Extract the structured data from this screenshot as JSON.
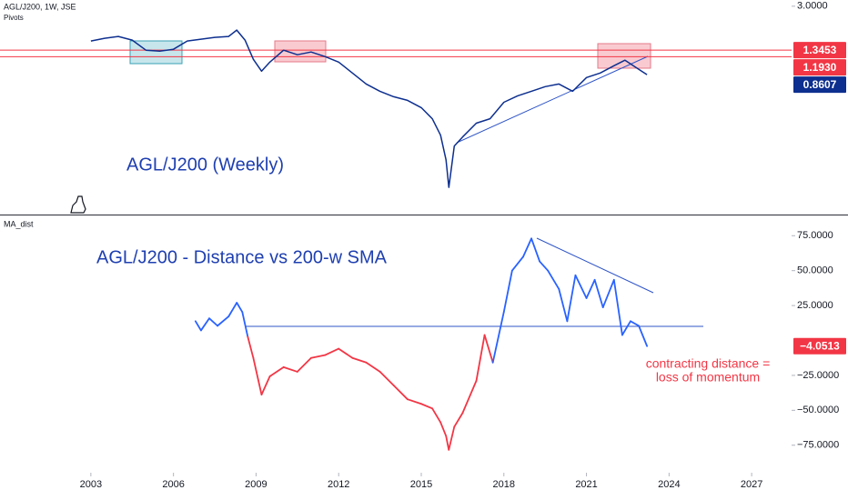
{
  "chart_data": [
    {
      "type": "line",
      "title": "AGL/J200, 1W, JSE",
      "subtitle": "Pivots",
      "annotation": "AGL/J200 (Weekly)",
      "log": true,
      "color": "#0d2f8f",
      "xlim": [
        1999.7,
        2028.45
      ],
      "ylim": [
        0.067,
        3.36
      ],
      "yticks": [
        {
          "value": 3,
          "label": "3.0000"
        }
      ],
      "levels": [
        1.3453,
        {
          "value": 1.193,
          "label": "1.1930"
        }
      ],
      "level_color": "#f23645",
      "x": [
        2003,
        2003.5,
        2004,
        2004.5,
        2005,
        2005.5,
        2006,
        2006.5,
        2007,
        2007.5,
        2008,
        2008.3,
        2008.6,
        2008.9,
        2009.2,
        2009.5,
        2010,
        2010.5,
        2011,
        2011.5,
        2012,
        2012.5,
        2013,
        2013.5,
        2014,
        2014.5,
        2015,
        2015.4,
        2015.7,
        2015.9,
        2016,
        2016.2,
        2016.5,
        2017,
        2017.5,
        2018,
        2018.5,
        2019,
        2019.5,
        2020,
        2020.5,
        2021,
        2021.5,
        2022,
        2022.4,
        2022.7,
        2023,
        2023.2
      ],
      "values": [
        1.589,
        1.671,
        1.727,
        1.616,
        1.345,
        1.323,
        1.368,
        1.589,
        1.643,
        1.699,
        1.727,
        1.941,
        1.616,
        1.139,
        0.917,
        1.083,
        1.345,
        1.238,
        1.301,
        1.197,
        1.083,
        0.887,
        0.726,
        0.635,
        0.575,
        0.538,
        0.471,
        0.385,
        0.285,
        0.182,
        0.11,
        0.234,
        0.276,
        0.355,
        0.385,
        0.52,
        0.585,
        0.635,
        0.691,
        0.726,
        0.635,
        0.816,
        0.887,
        1.013,
        1.12,
        1.013,
        0.917,
        0.8607
      ]
    },
    {
      "type": "line",
      "title": "MA_dist",
      "annotation": "AGL/J200 - Distance vs 200-w SMA",
      "note": [
        "contracting distance =",
        "loss of momentum"
      ],
      "up_color": "#2962ff",
      "down_color": "#f23645",
      "xlim": [
        1999.7,
        2028.45
      ],
      "ylim": [
        -94.7,
        89.5
      ],
      "xticks": [
        2003,
        2006,
        2009,
        2012,
        2015,
        2018,
        2021,
        2024,
        2027
      ],
      "yticks": [
        {
          "value": 75,
          "label": "75.0000"
        },
        {
          "value": 50,
          "label": "50.0000"
        },
        {
          "value": 25,
          "label": "25.0000"
        },
        {
          "value": -25,
          "label": "−25.0000"
        },
        {
          "value": -50,
          "label": "−50.0000"
        },
        {
          "value": -75,
          "label": "−75.0000"
        }
      ],
      "x": [
        2006.8,
        2007,
        2007.3,
        2007.6,
        2008,
        2008.3,
        2008.5,
        2008.7,
        2008.9,
        2009.2,
        2009.5,
        2010,
        2010.5,
        2011,
        2011.5,
        2012,
        2012.5,
        2013,
        2013.5,
        2014,
        2014.5,
        2015,
        2015.4,
        2015.7,
        2015.9,
        2016,
        2016.2,
        2016.5,
        2017,
        2017.3,
        2017.6,
        2018,
        2018.3,
        2018.7,
        2019,
        2019.3,
        2019.6,
        2020,
        2020.3,
        2020.6,
        2021,
        2021.3,
        2021.6,
        2022,
        2022.3,
        2022.6,
        2022.9,
        2023.2
      ],
      "values": [
        13.8,
        7.2,
        15.8,
        10.5,
        17.1,
        27.0,
        20.4,
        2.6,
        -12.5,
        -38.8,
        -25.7,
        -19.1,
        -22.4,
        -12.5,
        -10.5,
        -5.9,
        -12.5,
        -15.8,
        -22.4,
        -32.2,
        -42.1,
        -45.4,
        -48.7,
        -58.6,
        -68.4,
        -78.3,
        -61.8,
        -52.0,
        -28.9,
        3.9,
        -15.8,
        20.4,
        50.0,
        59.9,
        73.0,
        56.6,
        50.0,
        36.8,
        13.8,
        46.7,
        30.3,
        43.4,
        23.7,
        43.4,
        3.9,
        13.8,
        10.5,
        -4.0513
      ],
      "value_labels": [
        null,
        null,
        null,
        null,
        null,
        null,
        null,
        null,
        null,
        null,
        null,
        null,
        null,
        null,
        null,
        null,
        null,
        null,
        null,
        null,
        null,
        null,
        null,
        null,
        null,
        null,
        null,
        null,
        null,
        null,
        null,
        null,
        null,
        null,
        null,
        null,
        null,
        null,
        null,
        null,
        null,
        null,
        null,
        null,
        null,
        null,
        null,
        "−4.0513"
      ]
    }
  ]
}
